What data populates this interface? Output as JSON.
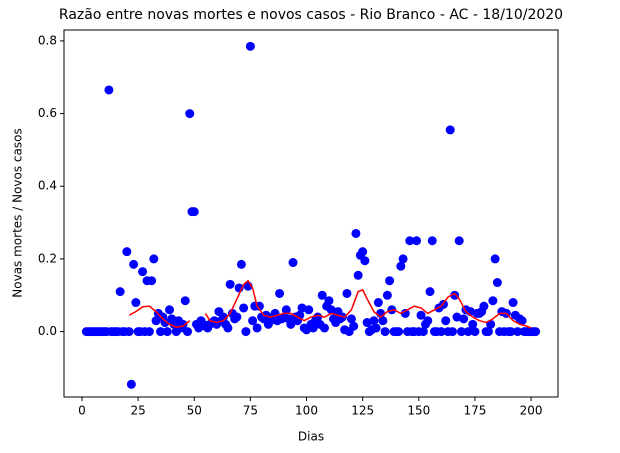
{
  "chart_data": {
    "type": "scatter",
    "title": "Razão entre novas mortes e novos casos - Rio Branco - AC - 18/10/2020",
    "x_label": "Dias",
    "y_label": "Novas mortes / Novos casos",
    "xlim": [
      -8,
      212
    ],
    "ylim": [
      -0.18,
      0.83
    ],
    "xticks": [
      0,
      25,
      50,
      75,
      100,
      125,
      150,
      175,
      200
    ],
    "yticks": [
      {
        "value": 0,
        "label": "0.0"
      },
      0.2,
      0.4,
      0.6,
      0.8
    ],
    "series": [
      {
        "type": "scatter",
        "color": "#0000ff",
        "x": [
          2,
          3,
          4,
          5,
          6,
          7,
          8,
          9,
          10,
          11,
          12,
          13,
          14,
          15,
          16,
          17,
          18,
          19,
          20,
          21,
          22,
          23,
          24,
          25,
          26,
          27,
          28,
          29,
          30,
          31,
          32,
          33,
          34,
          35,
          36,
          37,
          38,
          39,
          40,
          41,
          42,
          43,
          44,
          45,
          46,
          47,
          48,
          49,
          50,
          51,
          52,
          53,
          54,
          55,
          56,
          57,
          58,
          59,
          60,
          61,
          62,
          63,
          64,
          65,
          66,
          67,
          68,
          69,
          70,
          71,
          72,
          73,
          74,
          75,
          76,
          77,
          78,
          79,
          80,
          81,
          82,
          83,
          84,
          85,
          86,
          87,
          88,
          89,
          90,
          91,
          92,
          93,
          94,
          95,
          96,
          97,
          98,
          99,
          100,
          101,
          102,
          103,
          104,
          105,
          106,
          107,
          108,
          109,
          110,
          111,
          112,
          113,
          114,
          115,
          116,
          117,
          118,
          119,
          120,
          121,
          122,
          123,
          124,
          125,
          126,
          127,
          128,
          129,
          130,
          131,
          132,
          133,
          134,
          135,
          136,
          137,
          138,
          139,
          140,
          141,
          142,
          143,
          144,
          145,
          146,
          147,
          148,
          149,
          150,
          151,
          152,
          153,
          154,
          155,
          156,
          157,
          158,
          159,
          160,
          161,
          162,
          163,
          164,
          165,
          166,
          167,
          168,
          169,
          170,
          171,
          172,
          173,
          174,
          175,
          176,
          177,
          178,
          179,
          180,
          181,
          182,
          183,
          184,
          185,
          186,
          187,
          188,
          189,
          190,
          191,
          192,
          193,
          194,
          195,
          196,
          197,
          198,
          199,
          200,
          201,
          202
        ],
        "values": [
          0,
          0,
          0,
          0,
          0,
          0,
          0,
          0,
          0,
          0,
          0.665,
          0,
          0,
          0,
          0,
          0.11,
          0,
          0,
          0.22,
          0,
          -0.145,
          0.185,
          0.08,
          0,
          0,
          0.165,
          0,
          0.14,
          0,
          0.14,
          0.2,
          0.03,
          0.05,
          0,
          0.04,
          0.025,
          0,
          0.06,
          0.035,
          0.02,
          0,
          0.03,
          0.01,
          0.02,
          0.085,
          0,
          0.6,
          0.33,
          0.33,
          0.02,
          0.01,
          0.03,
          0.02,
          0.015,
          0.01,
          0.02,
          0.025,
          0.03,
          0.02,
          0.055,
          0.03,
          0.04,
          0.02,
          0.01,
          0.13,
          0.05,
          0.035,
          0.04,
          0.12,
          0.185,
          0.065,
          0,
          0.125,
          0.785,
          0.03,
          0.07,
          0.01,
          0.07,
          0.04,
          0.035,
          0.045,
          0.02,
          0.03,
          0.04,
          0.05,
          0.03,
          0.105,
          0.035,
          0.04,
          0.06,
          0.035,
          0.02,
          0.19,
          0.04,
          0.03,
          0.045,
          0.065,
          0.01,
          0.005,
          0.06,
          0.02,
          0.01,
          0.03,
          0.04,
          0.02,
          0.1,
          0.01,
          0.07,
          0.085,
          0.06,
          0.035,
          0.025,
          0.055,
          0.035,
          0.04,
          0.005,
          0.105,
          0,
          0.035,
          0.015,
          0.27,
          0.155,
          0.21,
          0.22,
          0.195,
          0.025,
          0,
          0.005,
          0.03,
          0.01,
          0.08,
          0.05,
          0.03,
          0,
          0.1,
          0.14,
          0.06,
          0,
          0,
          0,
          0.18,
          0.2,
          0.05,
          0,
          0.25,
          0,
          0,
          0.25,
          0,
          0.045,
          0,
          0.02,
          0.03,
          0.11,
          0.25,
          0,
          0,
          0.065,
          0,
          0.075,
          0.03,
          0,
          0.555,
          0,
          0.1,
          0.04,
          0.25,
          0,
          0.035,
          0.06,
          0,
          0.055,
          0.02,
          0,
          0.05,
          0.05,
          0.055,
          0.07,
          0,
          0,
          0.02,
          0.085,
          0.2,
          0.135,
          0,
          0.055,
          0,
          0.05,
          0,
          0,
          0.08,
          0.045,
          0,
          0.035,
          0.03,
          0,
          0,
          0,
          0,
          0,
          0
        ]
      },
      {
        "type": "line",
        "color": "#ff0000",
        "x": [
          21,
          24,
          27,
          30,
          33,
          36,
          39,
          42,
          45,
          48,
          51,
          55,
          57,
          60,
          63,
          66,
          69,
          72,
          74,
          76,
          78,
          81,
          84,
          87,
          90,
          93,
          96,
          99,
          102,
          105,
          108,
          111,
          114,
          117,
          120,
          123,
          125,
          127,
          130,
          133,
          136,
          139,
          142,
          145,
          148,
          151,
          154,
          157,
          160,
          163,
          166,
          168,
          171,
          174,
          177,
          180,
          183,
          186,
          189,
          192,
          195,
          198,
          200
        ],
        "values": [
          0.045,
          0.055,
          0.068,
          0.07,
          0.055,
          0.035,
          0.02,
          0.012,
          0.015,
          0.03,
          null,
          0.05,
          0.03,
          0.025,
          0.03,
          0.05,
          0.09,
          0.13,
          0.14,
          0.12,
          0.07,
          0.045,
          0.04,
          0.045,
          0.05,
          0.05,
          0.04,
          0.03,
          0.04,
          0.045,
          0.04,
          0.05,
          0.045,
          0.04,
          0.06,
          0.11,
          0.115,
          0.09,
          0.055,
          0.04,
          0.055,
          0.06,
          0.05,
          0.06,
          0.07,
          0.065,
          0.05,
          0.06,
          0.07,
          0.095,
          0.105,
          0.09,
          0.055,
          0.04,
          0.03,
          0.025,
          0.035,
          0.05,
          0.05,
          0.03,
          0.02,
          0.015,
          0.01
        ]
      }
    ]
  }
}
